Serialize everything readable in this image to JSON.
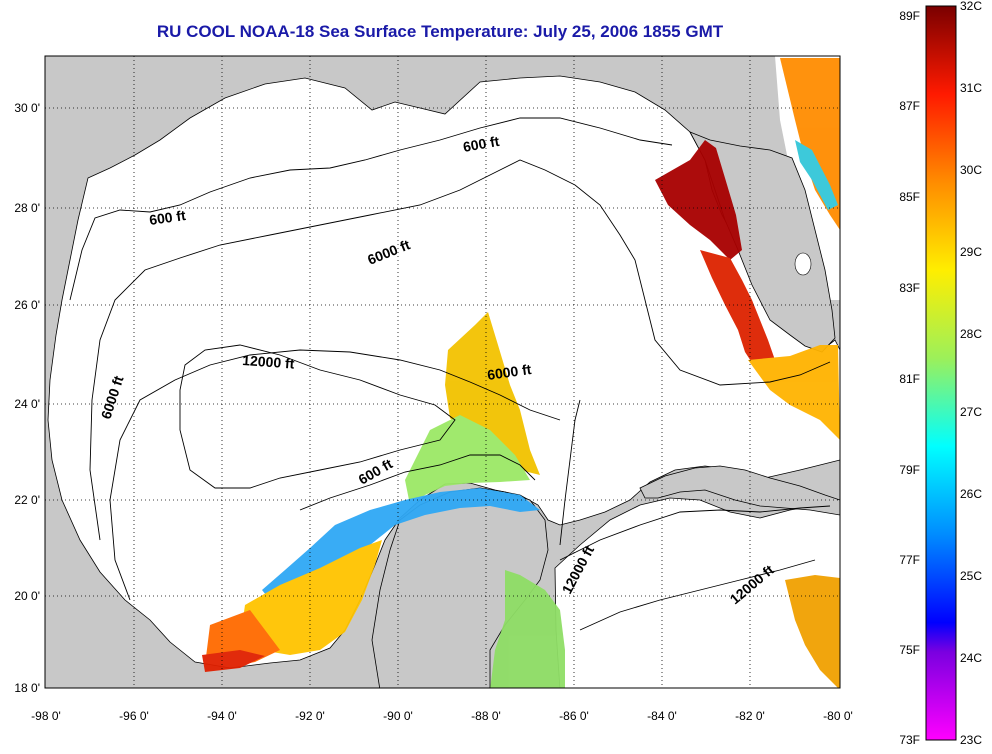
{
  "title": "RU COOL  NOAA-18  Sea Surface Temperature:  July 25, 2006 1855 GMT",
  "map": {
    "lon_labels": [
      "-98 0'",
      "-96 0'",
      "-94 0'",
      "-92 0'",
      "-90 0'",
      "-88 0'",
      "-86 0'",
      "-84 0'",
      "-82 0'",
      "-80 0'"
    ],
    "lat_labels": [
      "30 0'",
      "28 0'",
      "26 0'",
      "24 0'",
      "22 0'",
      "20 0'",
      "18 0'"
    ],
    "contour_labels": [
      "600 ft",
      "600 ft",
      "6000 ft",
      "12000 ft",
      "6000 ft",
      "6000 ft",
      "600 ft",
      "12000 ft",
      "12000 ft"
    ],
    "colors": {
      "land": "#c8c8c8",
      "ocean_nodata": "#ffffff",
      "title": "#1a1aa8"
    }
  },
  "colorbar": {
    "f_labels": [
      "89F",
      "87F",
      "85F",
      "83F",
      "81F",
      "79F",
      "77F",
      "75F",
      "73F"
    ],
    "c_labels": [
      "32C",
      "31C",
      "30C",
      "29C",
      "28C",
      "27C",
      "26C",
      "25C",
      "24C",
      "23C"
    ]
  }
}
